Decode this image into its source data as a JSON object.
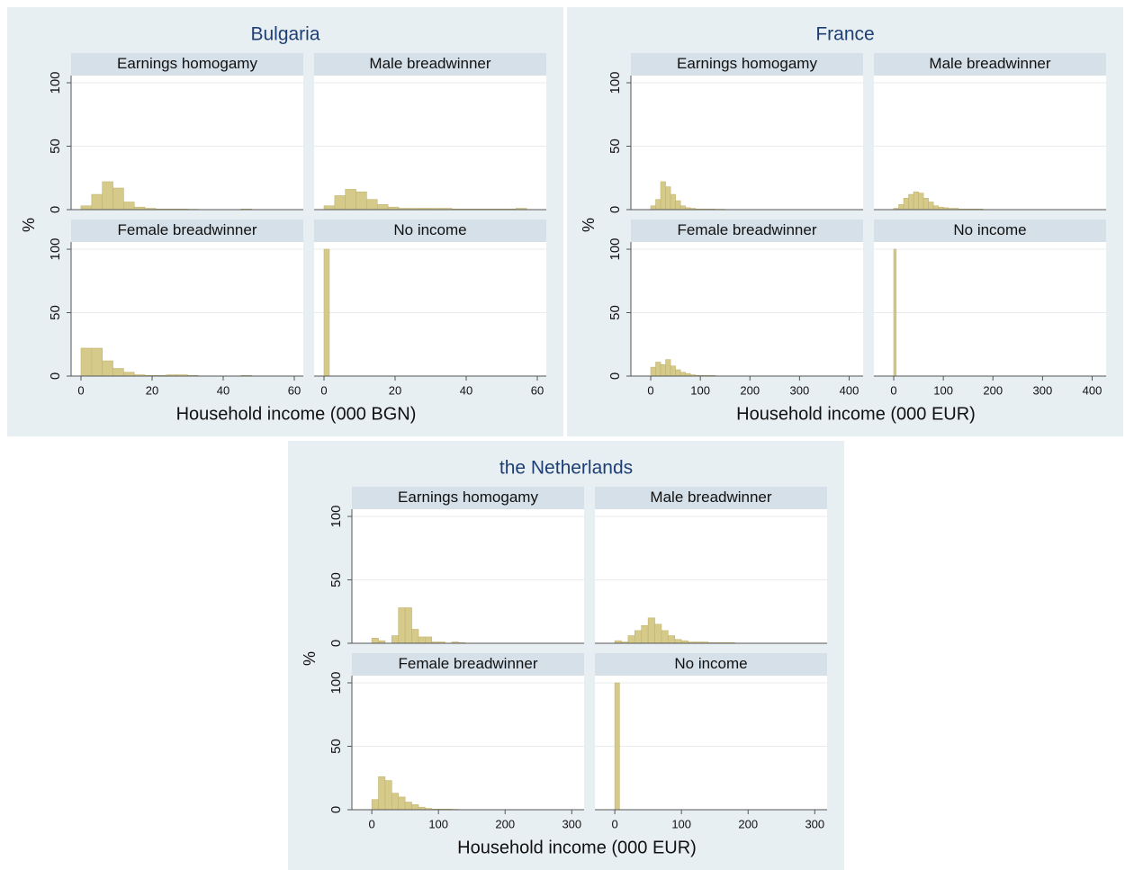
{
  "chart_data": [
    {
      "type": "histogram",
      "title": "Bulgaria",
      "y_label": "%",
      "x_label": "Household income (000 BGN)",
      "xlim": [
        0,
        60
      ],
      "xticks": [
        0,
        20,
        40,
        60
      ],
      "ylim": [
        0,
        100
      ],
      "yticks": [
        0,
        50,
        100
      ],
      "grid": true,
      "color": "#d6ca8a",
      "panels": [
        {
          "title": "Earnings homogamy",
          "bins": [
            0,
            3,
            6,
            9,
            12,
            15,
            18,
            21,
            24,
            27,
            30,
            33,
            36,
            39,
            42,
            45,
            48
          ],
          "values": [
            3,
            12,
            22,
            17,
            6,
            2,
            1,
            0.5,
            0.5,
            0.5,
            0.3,
            0,
            0,
            0,
            0,
            0.5
          ]
        },
        {
          "title": "Male breadwinner",
          "bins": [
            0,
            3,
            6,
            9,
            12,
            15,
            18,
            21,
            24,
            27,
            30,
            33,
            36,
            39,
            42,
            45,
            48,
            51,
            54,
            57
          ],
          "values": [
            3,
            11,
            16,
            14,
            8,
            4,
            2,
            1,
            1,
            1,
            1,
            1,
            0.5,
            0.5,
            0.5,
            0.5,
            0.5,
            0.5,
            1
          ]
        },
        {
          "title": "Female breadwinner",
          "bins": [
            0,
            3,
            6,
            9,
            12,
            15,
            18,
            21,
            24,
            27,
            30,
            33,
            36,
            39,
            42,
            45,
            48
          ],
          "values": [
            22,
            22,
            12,
            6,
            3,
            1,
            0.5,
            0.5,
            1,
            1,
            0.5,
            0,
            0,
            0,
            0,
            0.5
          ]
        },
        {
          "title": "No income",
          "bins": [
            0,
            1.5
          ],
          "values": [
            100
          ]
        }
      ]
    },
    {
      "type": "histogram",
      "title": "France",
      "y_label": "%",
      "x_label": "Household income (000 EUR)",
      "xlim": [
        -20,
        410
      ],
      "xticks": [
        0,
        100,
        200,
        300,
        400
      ],
      "ylim": [
        0,
        100
      ],
      "yticks": [
        0,
        50,
        100
      ],
      "grid": true,
      "color": "#d6ca8a",
      "panels": [
        {
          "title": "Earnings homogamy",
          "bins": [
            0,
            10,
            20,
            30,
            40,
            50,
            60,
            70,
            80,
            90,
            100,
            110,
            120,
            130,
            140,
            150
          ],
          "values": [
            3,
            8,
            22,
            18,
            12,
            7,
            3,
            1.5,
            1,
            0.5,
            0.5,
            0.5,
            0.5,
            0.3,
            0.3
          ]
        },
        {
          "title": "Male breadwinner",
          "bins": [
            0,
            10,
            20,
            30,
            40,
            50,
            60,
            70,
            80,
            90,
            100,
            110,
            120,
            130,
            140,
            150,
            160,
            170,
            180
          ],
          "values": [
            1,
            4,
            9,
            12,
            14,
            13,
            9,
            6,
            3,
            2,
            1.5,
            1,
            1,
            0.5,
            0.5,
            0.5,
            0.5,
            0.5
          ]
        },
        {
          "title": "Female breadwinner",
          "bins": [
            0,
            10,
            20,
            30,
            40,
            50,
            60,
            70,
            80,
            90,
            100,
            110,
            120,
            130
          ],
          "values": [
            7,
            11,
            9,
            13,
            8,
            5,
            3,
            2,
            1,
            0.5,
            0.5,
            0.5,
            0.5
          ]
        },
        {
          "title": "No income",
          "bins": [
            0,
            5
          ],
          "values": [
            100
          ]
        }
      ]
    },
    {
      "type": "histogram",
      "title": "the Netherlands",
      "y_label": "%",
      "x_label": "Household income (000 EUR)",
      "xlim": [
        -15,
        305
      ],
      "xticks": [
        0,
        100,
        200,
        300
      ],
      "ylim": [
        0,
        100
      ],
      "yticks": [
        0,
        50,
        100
      ],
      "grid": true,
      "color": "#d6ca8a",
      "panels": [
        {
          "title": "Earnings homogamy",
          "bins": [
            0,
            10,
            20,
            30,
            40,
            50,
            60,
            70,
            80,
            90,
            100,
            110,
            120,
            130,
            140
          ],
          "values": [
            4,
            2,
            0,
            6,
            28,
            28,
            11,
            5,
            5,
            1,
            1,
            0,
            1,
            0.5
          ]
        },
        {
          "title": "Male breadwinner",
          "bins": [
            0,
            10,
            20,
            30,
            40,
            50,
            60,
            70,
            80,
            90,
            100,
            110,
            120,
            130,
            140,
            150,
            160,
            170,
            180
          ],
          "values": [
            2,
            1,
            6,
            10,
            14,
            20,
            15,
            10,
            6,
            3,
            2,
            1,
            1,
            1,
            0.5,
            0.5,
            0.5,
            0.5
          ]
        },
        {
          "title": "Female breadwinner",
          "bins": [
            0,
            10,
            20,
            30,
            40,
            50,
            60,
            70,
            80,
            90,
            100,
            110,
            120,
            130
          ],
          "values": [
            8,
            26,
            23,
            13,
            10,
            6,
            4,
            2,
            1,
            0.5,
            0.5,
            0.5,
            0.3
          ]
        },
        {
          "title": "No income",
          "bins": [
            0,
            7
          ],
          "values": [
            100
          ]
        }
      ]
    }
  ]
}
